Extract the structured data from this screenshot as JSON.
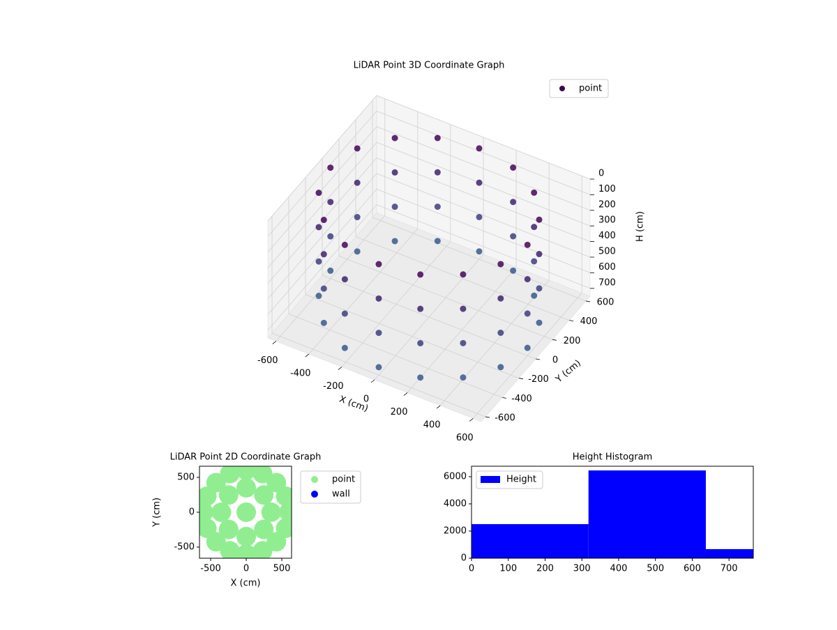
{
  "chart_data": [
    {
      "type": "scatter3d",
      "title": "LiDAR Point 3D Coordinate Graph",
      "xlabel": "X (cm)",
      "ylabel": "Y (cm)",
      "zlabel": "H (cm)",
      "xlim": [
        -650,
        650
      ],
      "ylim": [
        -650,
        650
      ],
      "zlim": [
        0,
        750
      ],
      "z_inverted": true,
      "xticks": [
        -600,
        -400,
        -200,
        0,
        200,
        400,
        600
      ],
      "yticks": [
        -600,
        -400,
        -200,
        0,
        200,
        400,
        600
      ],
      "zticks": [
        0,
        100,
        200,
        300,
        400,
        500,
        600,
        700
      ],
      "cmap": "viridis",
      "legend": "upper right",
      "series": [
        {
          "name": "point",
          "color": "#440154",
          "x": [
            600,
            554,
            424,
            230,
            0,
            -230,
            -424,
            -554,
            -600,
            -554,
            -424,
            -230,
            0,
            230,
            424,
            554,
            600,
            554,
            424,
            230,
            0,
            -230,
            -424,
            -554,
            -600,
            -554,
            -424,
            -230,
            0,
            230,
            424,
            554,
            600,
            554,
            424,
            230,
            0,
            -230,
            -424,
            -554,
            -600,
            -554,
            -424,
            -230,
            0,
            230,
            424,
            554,
            600,
            554,
            424,
            230,
            0,
            -230,
            -424,
            -554,
            -600,
            -554,
            -424,
            -230,
            0,
            230,
            424,
            554
          ],
          "y": [
            0,
            230,
            424,
            554,
            600,
            554,
            424,
            230,
            0,
            -230,
            -424,
            -554,
            -600,
            -554,
            -424,
            -230,
            0,
            230,
            424,
            554,
            600,
            554,
            424,
            230,
            0,
            -230,
            -424,
            -554,
            -600,
            -554,
            -424,
            -230,
            0,
            230,
            424,
            554,
            600,
            554,
            424,
            230,
            0,
            -230,
            -424,
            -554,
            -600,
            -554,
            -424,
            -230,
            0,
            230,
            424,
            554,
            600,
            554,
            424,
            230,
            0,
            -230,
            -424,
            -554,
            -600,
            -554,
            -424,
            -230
          ],
          "z": [
            40,
            40,
            40,
            40,
            40,
            40,
            40,
            40,
            40,
            40,
            40,
            40,
            40,
            40,
            40,
            40,
            260,
            260,
            260,
            260,
            260,
            260,
            260,
            260,
            260,
            260,
            260,
            260,
            260,
            260,
            260,
            260,
            480,
            480,
            480,
            480,
            480,
            480,
            480,
            480,
            480,
            480,
            480,
            480,
            480,
            480,
            480,
            480,
            700,
            700,
            700,
            700,
            700,
            700,
            700,
            700,
            700,
            700,
            700,
            700,
            700,
            700,
            700,
            700
          ]
        }
      ]
    },
    {
      "type": "scatter",
      "title": "LiDAR Point 2D Coordinate Graph",
      "xlabel": "X (cm)",
      "ylabel": "Y (cm)",
      "xlim": [
        -657,
        637
      ],
      "ylim": [
        -660,
        660
      ],
      "xticks": [
        -500,
        0,
        500
      ],
      "yticks": [
        -500,
        0,
        500
      ],
      "legend": "outside right",
      "series": [
        {
          "name": "point",
          "color": "#90ee90",
          "x": [
            600,
            554,
            424,
            230,
            0,
            -230,
            -424,
            -554,
            -600,
            -554,
            -424,
            -230,
            0,
            230,
            424,
            554,
            350,
            247,
            0,
            -247,
            -350,
            -247,
            0,
            247,
            0
          ],
          "y": [
            0,
            230,
            424,
            554,
            600,
            554,
            424,
            230,
            0,
            -230,
            -424,
            -554,
            -600,
            -554,
            -424,
            -230,
            0,
            247,
            350,
            247,
            0,
            -247,
            -350,
            -247,
            0
          ]
        },
        {
          "name": "wall",
          "color": "#0000ff",
          "x": [],
          "y": []
        }
      ]
    },
    {
      "type": "histogram",
      "title": "Height Histogram",
      "name": "Height",
      "color": "#0000ff",
      "bins": [
        0,
        318,
        637,
        766
      ],
      "values": [
        2510,
        6460,
        670
      ],
      "xlim": [
        0,
        766
      ],
      "ylim": [
        0,
        6770
      ],
      "xticks": [
        0,
        100,
        200,
        300,
        400,
        500,
        600,
        700
      ],
      "yticks": [
        0,
        2000,
        4000,
        6000
      ],
      "legend": "upper left"
    }
  ]
}
